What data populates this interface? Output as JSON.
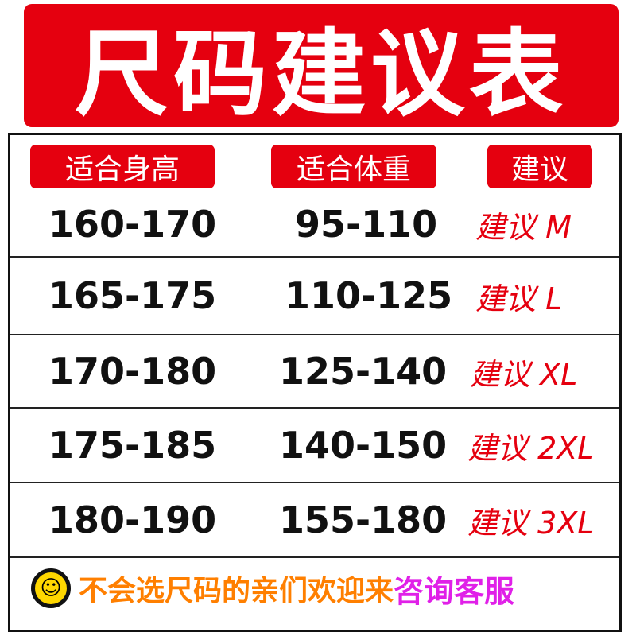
{
  "title": "尺码建议表",
  "headers": [
    "适合身高",
    "适合体重",
    "建议"
  ],
  "rows": [
    {
      "height": "160-170",
      "weight": "95-110",
      "suggestion": "建议 M"
    },
    {
      "height": "165-175",
      "weight": "110-125",
      "suggestion": "建议 L"
    },
    {
      "height": "170-180",
      "weight": "125-140",
      "suggestion": "建议 XL"
    },
    {
      "height": "175-185",
      "weight": "140-150",
      "suggestion": "建议 2XL"
    },
    {
      "height": "180-190",
      "weight": "155-180",
      "suggestion": "建议 3XL"
    }
  ],
  "footer": {
    "text": "不会选尺码的亲们欢迎来",
    "highlight": "咨询客服",
    "icon": "smiley-alarm-clock-icon"
  },
  "colors": {
    "red": "#e5000f",
    "orange": "#ff7f00",
    "magenta": "#e020e8"
  }
}
